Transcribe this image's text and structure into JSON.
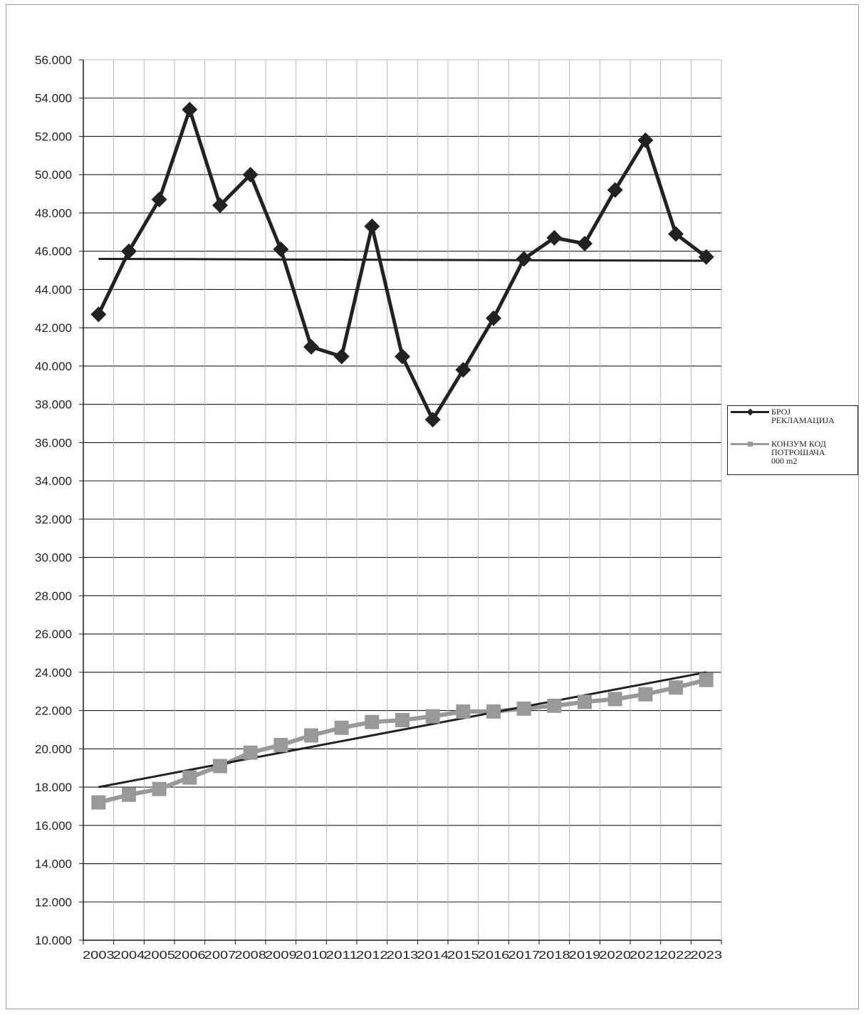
{
  "chart_data": {
    "type": "line",
    "title": "",
    "xlabel": "",
    "ylabel": "",
    "categories": [
      "2003",
      "2004",
      "2005",
      "2006",
      "2007",
      "2008",
      "2009",
      "2010",
      "2011",
      "2012",
      "2013",
      "2014",
      "2015",
      "2016",
      "2017",
      "2018",
      "2019",
      "2020",
      "2021",
      "2022",
      "2023"
    ],
    "ylim": [
      10000,
      56000
    ],
    "y_ticks": [
      "10.000",
      "12.000",
      "14.000",
      "16.000",
      "18.000",
      "20.000",
      "22.000",
      "24.000",
      "26.000",
      "28.000",
      "30.000",
      "32.000",
      "34.000",
      "36.000",
      "38.000",
      "40.000",
      "42.000",
      "44.000",
      "46.000",
      "48.000",
      "50.000",
      "52.000",
      "54.000",
      "56.000"
    ],
    "y_tick_values": [
      10000,
      12000,
      14000,
      16000,
      18000,
      20000,
      22000,
      24000,
      26000,
      28000,
      30000,
      32000,
      34000,
      36000,
      38000,
      40000,
      42000,
      44000,
      46000,
      48000,
      50000,
      52000,
      54000,
      56000
    ],
    "grid": true,
    "legend_position": "right",
    "series": [
      {
        "name": "БРОЈ РЕКЛАМАЦИЈА",
        "color": "#222222",
        "marker": "diamond",
        "values": [
          42700,
          46000,
          48700,
          53400,
          48400,
          50000,
          46100,
          41000,
          40500,
          47300,
          40500,
          37200,
          39800,
          42500,
          45600,
          46700,
          46400,
          49200,
          51800,
          46900,
          45700
        ]
      },
      {
        "name": "КОНЗУМ КОД ПОТРОШАЧА 000 m2",
        "color": "#999999",
        "marker": "square",
        "values": [
          17200,
          17600,
          17900,
          18500,
          19100,
          19800,
          20200,
          20700,
          21100,
          21400,
          21500,
          21700,
          21950,
          21950,
          22100,
          22250,
          22450,
          22600,
          22850,
          23200,
          23600
        ]
      }
    ],
    "trendlines": [
      {
        "series": "БРОЈ РЕКЛАМАЦИЈА",
        "color": "#222222",
        "start": 45600,
        "end": 45500
      },
      {
        "series": "КОНЗУМ КОД ПОТРОШАЧА 000 m2",
        "color": "#222222",
        "start": 18000,
        "end": 24000
      }
    ]
  },
  "legend": {
    "item1": "БРОЈ\nРЕКЛАМАЦИЈА",
    "item2": "КОНЗУМ КОД\nПОТРОШАЧА\n000  m2"
  }
}
